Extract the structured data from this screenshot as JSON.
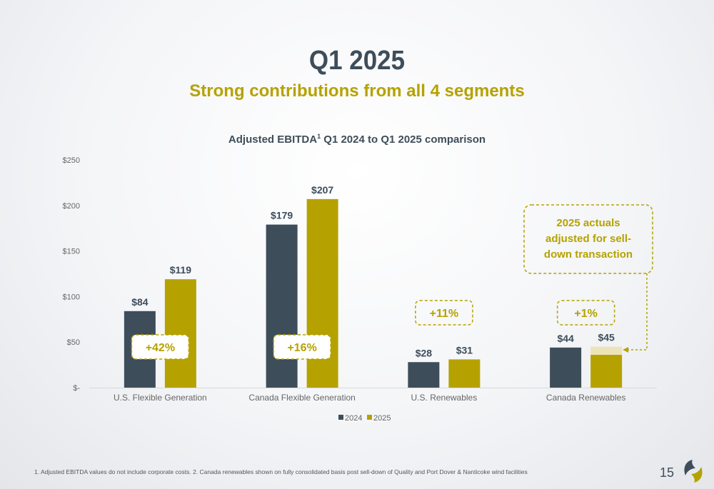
{
  "header": {
    "title": "Q1 2025",
    "subtitle": "Strong contributions from all 4 segments"
  },
  "chart_data": {
    "type": "bar",
    "title_main": "Adjusted EBITDA",
    "title_sup": "1",
    "title_rest": " Q1 2024 to Q1 2025 comparison",
    "categories": [
      "U.S. Flexible Generation",
      "Canada Flexible Generation",
      "U.S. Renewables",
      "Canada Renewables"
    ],
    "series": [
      {
        "name": "2024",
        "values": [
          84,
          179,
          28,
          44
        ],
        "labels": [
          "$84",
          "$179",
          "$28",
          "$44"
        ],
        "color": "#3e4d5a"
      },
      {
        "name": "2025",
        "values": [
          119,
          207,
          31,
          45
        ],
        "labels": [
          "$119",
          "$207",
          "$31",
          "$45"
        ],
        "color": "#b5a200"
      }
    ],
    "adjusted_2025_canada_renewables_base": 36,
    "ylim": [
      0,
      250
    ],
    "yticks": [
      {
        "value": 0,
        "label": "$-"
      },
      {
        "value": 50,
        "label": "$50"
      },
      {
        "value": 100,
        "label": "$100"
      },
      {
        "value": 150,
        "label": "$150"
      },
      {
        "value": 200,
        "label": "$200"
      },
      {
        "value": 250,
        "label": "$250"
      }
    ],
    "growth_labels": [
      "+42%",
      "+16%",
      "+11%",
      "+1%"
    ],
    "callout": [
      "2025 actuals",
      "adjusted for sell-",
      "down transaction"
    ],
    "grid": false,
    "legend": "bottom-center",
    "accent_color": "#b5a200",
    "dark_color": "#3e4d5a"
  },
  "footer": {
    "footnote": "1.  Adjusted EBITDA values do not include corporate costs. 2. Canada renewables shown on fully consolidated basis post sell-down of Quality and Port Dover & Nanticoke wind facilities",
    "page_number": "15"
  },
  "icons": [
    "company-logo-icon"
  ]
}
